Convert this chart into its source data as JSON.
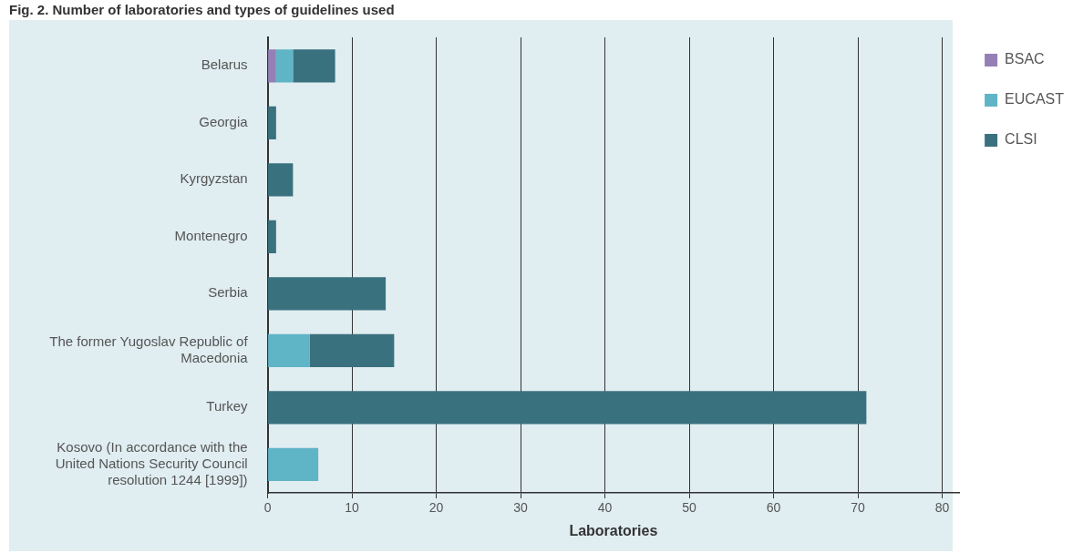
{
  "chart_data": {
    "type": "bar",
    "title": "Fig. 2. Number of laboratories and types of guidelines used",
    "xlabel": "Laboratories",
    "orientation": "horizontal",
    "stacked": true,
    "categories": [
      "Belarus",
      "Georgia",
      "Kyrgyzstan",
      "Montenegro",
      "Serbia",
      "The former Yugoslav Republic of Macedonia",
      "Turkey",
      "Kosovo (In accordance with the United Nations Security Council resolution 1244 [1999])"
    ],
    "series": [
      {
        "name": "BSAC",
        "color": "#9580b5",
        "values": [
          1,
          0,
          0,
          0,
          0,
          0,
          0,
          0
        ]
      },
      {
        "name": "EUCAST",
        "color": "#5fb4c6",
        "values": [
          2,
          0,
          0,
          0,
          0,
          5,
          0,
          6
        ]
      },
      {
        "name": "CLSI",
        "color": "#3a717e",
        "values": [
          5,
          1,
          3,
          1,
          14,
          10,
          71,
          0
        ]
      }
    ],
    "xlim": [
      0,
      82
    ],
    "xticks": [
      0,
      10,
      20,
      30,
      40,
      50,
      60,
      70,
      80
    ],
    "grid": "x",
    "legend": "top right"
  }
}
